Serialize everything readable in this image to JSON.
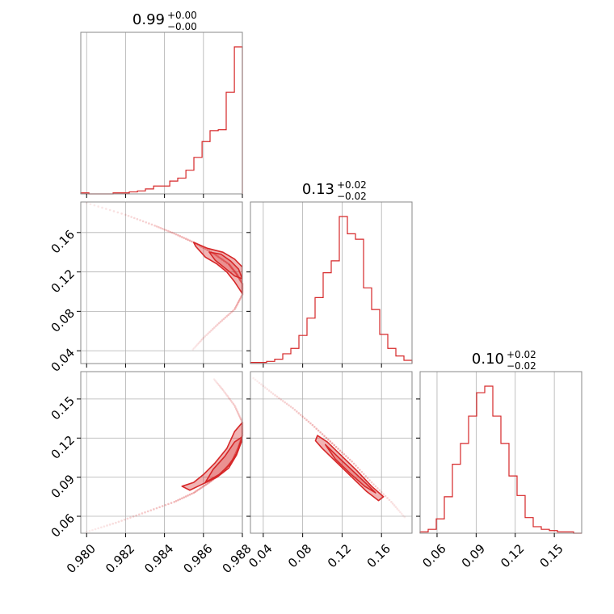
{
  "colors": {
    "series": "#d62728",
    "frame": "#888888",
    "grid": "#b0b0b0"
  },
  "chart_data": {
    "type": "corner",
    "parameters": [
      {
        "title": "0.99",
        "plus": "+0.00",
        "minus": "−0.00",
        "range": [
          0.9797,
          0.988
        ]
      },
      {
        "title": "0.13",
        "plus": "+0.02",
        "minus": "−0.02",
        "range": [
          0.027,
          0.191
        ]
      },
      {
        "title": "0.10",
        "plus": "+0.02",
        "minus": "−0.02",
        "range": [
          0.047,
          0.171
        ]
      }
    ],
    "histograms": [
      {
        "param": 0,
        "edges": [
          0.9797,
          0.98012,
          0.98053,
          0.98095,
          0.98136,
          0.98178,
          0.98219,
          0.98261,
          0.98302,
          0.98344,
          0.98385,
          0.98427,
          0.98468,
          0.9851,
          0.98551,
          0.98593,
          0.98634,
          0.98676,
          0.98717,
          0.98759,
          0.988
        ],
        "counts": [
          1,
          0,
          0,
          0,
          1,
          1,
          2,
          3,
          5,
          8,
          8,
          13,
          16,
          24,
          37,
          53,
          64,
          65,
          103,
          149
        ]
      },
      {
        "param": 1,
        "edges": [
          0.027,
          0.0352,
          0.0434,
          0.0516,
          0.0598,
          0.068,
          0.0762,
          0.0844,
          0.0926,
          0.1008,
          0.109,
          0.1172,
          0.1254,
          0.1336,
          0.1418,
          0.15,
          0.1582,
          0.1664,
          0.1746,
          0.1828,
          0.191
        ],
        "counts": [
          1,
          1,
          2,
          4,
          9,
          14,
          26,
          42,
          61,
          84,
          95,
          136,
          120,
          115,
          70,
          50,
          27,
          14,
          7,
          3
        ]
      },
      {
        "param": 2,
        "edges": [
          0.047,
          0.0532,
          0.0594,
          0.0656,
          0.0718,
          0.078,
          0.0842,
          0.0904,
          0.0966,
          0.1028,
          0.109,
          0.1152,
          0.1214,
          0.1276,
          0.1338,
          0.14,
          0.1462,
          0.1524,
          0.1586,
          0.1648,
          0.171
        ],
        "counts": [
          1,
          3,
          11,
          28,
          53,
          69,
          90,
          108,
          113,
          90,
          69,
          44,
          29,
          12,
          5,
          3,
          2,
          1,
          1,
          0
        ]
      }
    ],
    "scatter_tracks": [
      {
        "name": "p1-vs-p0",
        "xparam": 0,
        "yparam": 1,
        "points": [
          [
            0.98,
            0.19
          ],
          [
            0.982,
            0.178
          ],
          [
            0.9835,
            0.167
          ],
          [
            0.9845,
            0.159
          ],
          [
            0.9855,
            0.15
          ],
          [
            0.9865,
            0.139
          ],
          [
            0.9873,
            0.128
          ],
          [
            0.9877,
            0.118
          ],
          [
            0.988,
            0.108
          ],
          [
            0.988,
            0.097
          ],
          [
            0.9876,
            0.082
          ],
          [
            0.9868,
            0.068
          ],
          [
            0.986,
            0.053
          ],
          [
            0.9854,
            0.04
          ]
        ]
      },
      {
        "name": "p2-vs-p0",
        "xparam": 0,
        "yparam": 2,
        "points": [
          [
            0.98,
            0.048
          ],
          [
            0.9815,
            0.055
          ],
          [
            0.983,
            0.063
          ],
          [
            0.9845,
            0.071
          ],
          [
            0.9855,
            0.078
          ],
          [
            0.9863,
            0.086
          ],
          [
            0.987,
            0.094
          ],
          [
            0.9875,
            0.103
          ],
          [
            0.9878,
            0.113
          ],
          [
            0.988,
            0.122
          ],
          [
            0.988,
            0.132
          ],
          [
            0.9876,
            0.145
          ],
          [
            0.987,
            0.157
          ],
          [
            0.9865,
            0.166
          ]
        ]
      },
      {
        "name": "p2-vs-p1",
        "xparam": 1,
        "yparam": 2,
        "points": [
          [
            0.03,
            0.166
          ],
          [
            0.05,
            0.154
          ],
          [
            0.07,
            0.143
          ],
          [
            0.09,
            0.13
          ],
          [
            0.11,
            0.116
          ],
          [
            0.13,
            0.102
          ],
          [
            0.15,
            0.086
          ],
          [
            0.17,
            0.071
          ],
          [
            0.185,
            0.058
          ]
        ]
      }
    ],
    "contours": [
      {
        "name": "p1-vs-p0",
        "xparam": 0,
        "yparam": 1,
        "outer": [
          [
            0.9855,
            0.15
          ],
          [
            0.9862,
            0.144
          ],
          [
            0.987,
            0.14
          ],
          [
            0.9876,
            0.133
          ],
          [
            0.988,
            0.125
          ],
          [
            0.988,
            0.098
          ],
          [
            0.9876,
            0.11
          ],
          [
            0.9872,
            0.12
          ],
          [
            0.9867,
            0.128
          ],
          [
            0.9861,
            0.135
          ],
          [
            0.9856,
            0.146
          ]
        ],
        "inner": [
          [
            0.9863,
            0.14
          ],
          [
            0.9869,
            0.138
          ],
          [
            0.9874,
            0.131
          ],
          [
            0.9878,
            0.123
          ],
          [
            0.988,
            0.113
          ],
          [
            0.9876,
            0.116
          ],
          [
            0.9871,
            0.124
          ],
          [
            0.9866,
            0.132
          ]
        ]
      },
      {
        "name": "p2-vs-p0",
        "xparam": 0,
        "yparam": 2,
        "outer": [
          [
            0.9853,
            0.08
          ],
          [
            0.986,
            0.085
          ],
          [
            0.9867,
            0.09
          ],
          [
            0.9873,
            0.097
          ],
          [
            0.9877,
            0.107
          ],
          [
            0.988,
            0.119
          ],
          [
            0.988,
            0.132
          ],
          [
            0.9876,
            0.125
          ],
          [
            0.9872,
            0.112
          ],
          [
            0.9866,
            0.101
          ],
          [
            0.986,
            0.092
          ],
          [
            0.9855,
            0.086
          ],
          [
            0.9849,
            0.083
          ]
        ],
        "inner": [
          [
            0.9861,
            0.086
          ],
          [
            0.9868,
            0.092
          ],
          [
            0.9873,
            0.099
          ],
          [
            0.9877,
            0.108
          ],
          [
            0.988,
            0.121
          ],
          [
            0.9876,
            0.117
          ],
          [
            0.9871,
            0.106
          ],
          [
            0.9865,
            0.096
          ]
        ]
      },
      {
        "name": "p2-vs-p1",
        "xparam": 1,
        "yparam": 2,
        "outer": [
          [
            0.095,
            0.122
          ],
          [
            0.105,
            0.117
          ],
          [
            0.12,
            0.106
          ],
          [
            0.135,
            0.095
          ],
          [
            0.15,
            0.083
          ],
          [
            0.162,
            0.075
          ],
          [
            0.157,
            0.072
          ],
          [
            0.145,
            0.079
          ],
          [
            0.13,
            0.09
          ],
          [
            0.115,
            0.101
          ],
          [
            0.1,
            0.112
          ],
          [
            0.093,
            0.118
          ]
        ],
        "inner": [
          [
            0.103,
            0.115
          ],
          [
            0.118,
            0.104
          ],
          [
            0.132,
            0.094
          ],
          [
            0.146,
            0.084
          ],
          [
            0.154,
            0.078
          ],
          [
            0.143,
            0.083
          ],
          [
            0.128,
            0.093
          ],
          [
            0.113,
            0.104
          ]
        ]
      }
    ],
    "axis_ticks": {
      "p0": {
        "values": [
          0.98,
          0.982,
          0.984,
          0.986,
          0.988
        ],
        "labels": [
          "0.980",
          "0.982",
          "0.984",
          "0.986",
          "0.988"
        ]
      },
      "p1_x": {
        "values": [
          0.04,
          0.08,
          0.12,
          0.16
        ],
        "labels": [
          "0.04",
          "0.08",
          "0.12",
          "0.16"
        ]
      },
      "p1_y": {
        "values": [
          0.04,
          0.08,
          0.12,
          0.16
        ],
        "labels": [
          "0.04",
          "0.08",
          "0.12",
          "0.16"
        ]
      },
      "p2_x": {
        "values": [
          0.06,
          0.09,
          0.12,
          0.15
        ],
        "labels": [
          "0.06",
          "0.09",
          "0.12",
          "0.15"
        ]
      },
      "p2_y": {
        "values": [
          0.06,
          0.09,
          0.12,
          0.15
        ],
        "labels": [
          "0.06",
          "0.09",
          "0.12",
          "0.15"
        ]
      }
    },
    "grid": true,
    "legend": "none"
  }
}
